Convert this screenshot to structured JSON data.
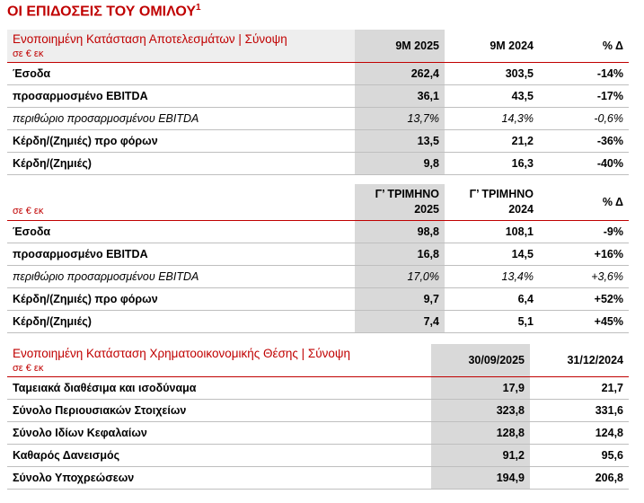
{
  "title": "ΟΙ ΕΠΙΔΟΣΕΙΣ ΤΟΥ ΟΜΙΛΟΥ",
  "title_note": "1",
  "tables": [
    {
      "title": "Ενοποιημένη Κατάσταση Αποτελεσμάτων | Σύνοψη",
      "unit": "σε € εκ",
      "columns": [
        "9Μ 2025",
        "9Μ 2024",
        "% Δ"
      ],
      "rows": [
        {
          "label": "Έσοδα",
          "cells": [
            "262,4",
            "303,5",
            "-14%"
          ]
        },
        {
          "label": "προσαρμοσμένο EBITDA",
          "cells": [
            "36,1",
            "43,5",
            "-17%"
          ]
        },
        {
          "label": "περιθώριο προσαρμοσμένου EBITDA",
          "cells": [
            "13,7%",
            "14,3%",
            "-0,6%"
          ],
          "italic": true
        },
        {
          "label": "Κέρδη/(Ζημιές) προ φόρων",
          "cells": [
            "13,5",
            "21,2",
            "-36%"
          ]
        },
        {
          "label": "Κέρδη/(Ζημιές)",
          "cells": [
            "9,8",
            "16,3",
            "-40%"
          ]
        }
      ]
    },
    {
      "unit": "σε € εκ",
      "columns": [
        "Γ’ ΤΡΙΜΗΝΟ 2025",
        "Γ’ ΤΡΙΜΗΝΟ 2024",
        "% Δ"
      ],
      "rows": [
        {
          "label": "Έσοδα",
          "cells": [
            "98,8",
            "108,1",
            "-9%"
          ]
        },
        {
          "label": "προσαρμοσμένο EBITDA",
          "cells": [
            "16,8",
            "14,5",
            "+16%"
          ]
        },
        {
          "label": "περιθώριο προσαρμοσμένου EBITDA",
          "cells": [
            "17,0%",
            "13,4%",
            "+3,6%"
          ],
          "italic": true
        },
        {
          "label": "Κέρδη/(Ζημιές) προ φόρων",
          "cells": [
            "9,7",
            "6,4",
            "+52%"
          ]
        },
        {
          "label": "Κέρδη/(Ζημιές)",
          "cells": [
            "7,4",
            "5,1",
            "+45%"
          ]
        }
      ]
    },
    {
      "title": "Ενοποιημένη Κατάσταση Χρηματοοικονομικής Θέσης | Σύνοψη",
      "unit": "σε € εκ",
      "columns": [
        "30/09/2025",
        "31/12/2024"
      ],
      "rows": [
        {
          "label": "Ταμειακά διαθέσιμα και ισοδύναμα",
          "cells": [
            "17,9",
            "21,7"
          ]
        },
        {
          "label": "Σύνολο Περιουσιακών Στοιχείων",
          "cells": [
            "323,8",
            "331,6"
          ]
        },
        {
          "label": "Σύνολο Ιδίων Κεφαλαίων",
          "cells": [
            "128,8",
            "124,8"
          ]
        },
        {
          "label": "Καθαρός Δανεισμός",
          "cells": [
            "91,2",
            "95,6"
          ]
        },
        {
          "label": "Σύνολο Υποχρεώσεων",
          "cells": [
            "194,9",
            "206,8"
          ]
        }
      ]
    }
  ]
}
